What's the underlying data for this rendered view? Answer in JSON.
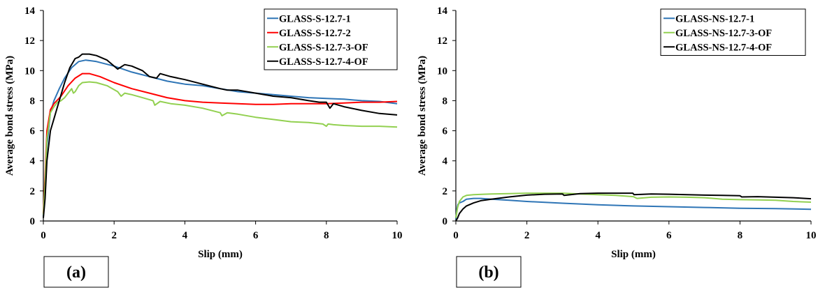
{
  "chart_data": [
    {
      "type": "line",
      "panel_label": "(a)",
      "xlabel": "Slip (mm)",
      "ylabel": "Average bond stress (MPa)",
      "xlim": [
        0,
        10
      ],
      "ylim": [
        0,
        14
      ],
      "xticks": [
        "0",
        "2",
        "4",
        "6",
        "8",
        "10"
      ],
      "yticks": [
        "0",
        "2",
        "4",
        "6",
        "8",
        "10",
        "12",
        "14"
      ],
      "grid": false,
      "legend_position": "top-right",
      "series": [
        {
          "name": "GLASS-S-12.7-1",
          "color": "#2e75b6",
          "x": [
            0,
            0.05,
            0.1,
            0.2,
            0.3,
            0.45,
            0.6,
            0.8,
            1.0,
            1.2,
            1.5,
            2.0,
            2.5,
            3.0,
            3.5,
            4.0,
            4.5,
            5.0,
            5.5,
            6.0,
            6.5,
            7.0,
            7.5,
            8.0,
            8.5,
            9.0,
            9.5,
            10.0
          ],
          "y": [
            0.3,
            2.5,
            5.0,
            7.2,
            8.0,
            8.8,
            9.5,
            10.2,
            10.6,
            10.7,
            10.6,
            10.3,
            9.9,
            9.6,
            9.3,
            9.1,
            9.0,
            8.8,
            8.6,
            8.5,
            8.4,
            8.3,
            8.2,
            8.15,
            8.1,
            8.0,
            7.95,
            7.8
          ]
        },
        {
          "name": "GLASS-S-12.7-2",
          "color": "#ff0000",
          "x": [
            0,
            0.05,
            0.1,
            0.2,
            0.3,
            0.5,
            0.7,
            0.9,
            1.1,
            1.3,
            1.6,
            2.0,
            2.5,
            3.0,
            3.5,
            4.0,
            4.5,
            5.0,
            5.5,
            6.0,
            6.5,
            7.0,
            7.5,
            8.0,
            8.5,
            9.0,
            9.5,
            10.0
          ],
          "y": [
            0.5,
            3.0,
            6.0,
            7.4,
            7.8,
            8.3,
            9.0,
            9.5,
            9.8,
            9.8,
            9.6,
            9.2,
            8.8,
            8.5,
            8.2,
            8.0,
            7.9,
            7.85,
            7.8,
            7.75,
            7.75,
            7.8,
            7.8,
            7.8,
            7.85,
            7.9,
            7.9,
            7.95
          ]
        },
        {
          "name": "GLASS-S-12.7-3-OF",
          "color": "#92d050",
          "x": [
            0,
            0.05,
            0.1,
            0.2,
            0.3,
            0.4,
            0.5,
            0.6,
            0.7,
            0.8,
            0.85,
            0.9,
            1.0,
            1.1,
            1.3,
            1.5,
            1.8,
            2.1,
            2.2,
            2.3,
            2.5,
            2.8,
            3.1,
            3.15,
            3.3,
            3.6,
            4.0,
            4.5,
            5.0,
            5.05,
            5.2,
            5.5,
            6.0,
            6.5,
            7.0,
            7.5,
            7.9,
            8.0,
            8.05,
            8.2,
            8.5,
            9.0,
            9.5,
            10.0
          ],
          "y": [
            0.4,
            2.5,
            5.5,
            7.2,
            7.6,
            7.9,
            8.0,
            8.2,
            8.5,
            8.8,
            8.5,
            8.6,
            9.0,
            9.2,
            9.25,
            9.2,
            9.0,
            8.6,
            8.3,
            8.5,
            8.4,
            8.2,
            8.0,
            7.7,
            7.95,
            7.8,
            7.7,
            7.5,
            7.2,
            7.0,
            7.2,
            7.1,
            6.9,
            6.75,
            6.6,
            6.55,
            6.45,
            6.3,
            6.45,
            6.4,
            6.35,
            6.3,
            6.3,
            6.25
          ]
        },
        {
          "name": "GLASS-S-12.7-4-OF",
          "color": "#000000",
          "x": [
            0,
            0.05,
            0.1,
            0.2,
            0.3,
            0.45,
            0.6,
            0.75,
            0.9,
            1.0,
            1.1,
            1.3,
            1.5,
            1.8,
            2.1,
            2.3,
            2.5,
            2.8,
            3.0,
            3.2,
            3.3,
            3.6,
            4.0,
            4.5,
            5.0,
            5.2,
            5.5,
            6.0,
            6.5,
            7.0,
            7.5,
            7.8,
            8.0,
            8.1,
            8.2,
            8.5,
            9.0,
            9.5,
            10.0
          ],
          "y": [
            0.2,
            1.5,
            4.0,
            6.0,
            6.8,
            8.0,
            9.2,
            10.2,
            10.8,
            10.9,
            11.1,
            11.1,
            11.0,
            10.7,
            10.1,
            10.4,
            10.3,
            10.0,
            9.6,
            9.5,
            9.8,
            9.6,
            9.4,
            9.1,
            8.8,
            8.7,
            8.7,
            8.5,
            8.3,
            8.2,
            8.0,
            7.9,
            7.9,
            7.5,
            7.8,
            7.6,
            7.35,
            7.15,
            7.05
          ]
        }
      ]
    },
    {
      "type": "line",
      "panel_label": "(b)",
      "xlabel": "Slip (mm)",
      "ylabel": "Average bond stress (MPa)",
      "xlim": [
        0,
        10
      ],
      "ylim": [
        0,
        14
      ],
      "xticks": [
        "0",
        "2",
        "4",
        "6",
        "8",
        "10"
      ],
      "yticks": [
        "0",
        "2",
        "4",
        "6",
        "8",
        "10",
        "12",
        "14"
      ],
      "grid": false,
      "legend_position": "top-right",
      "series": [
        {
          "name": "GLASS-NS-12.7-1",
          "color": "#2e75b6",
          "x": [
            0,
            0.03,
            0.06,
            0.1,
            0.2,
            0.3,
            0.5,
            0.7,
            1.0,
            1.5,
            2.0,
            3.0,
            4.0,
            5.0,
            6.0,
            7.0,
            8.0,
            9.0,
            10.0
          ],
          "y": [
            0.1,
            0.8,
            1.1,
            1.2,
            1.3,
            1.45,
            1.5,
            1.5,
            1.45,
            1.38,
            1.3,
            1.18,
            1.08,
            1.0,
            0.95,
            0.9,
            0.85,
            0.82,
            0.78
          ]
        },
        {
          "name": "GLASS-NS-12.7-3-OF",
          "color": "#92d050",
          "x": [
            0,
            0.05,
            0.1,
            0.2,
            0.3,
            0.5,
            0.8,
            1.0,
            1.5,
            2.0,
            2.5,
            3.0,
            3.5,
            4.0,
            4.5,
            5.0,
            5.1,
            5.5,
            6.0,
            6.5,
            7.0,
            7.5,
            8.0,
            8.5,
            9.0,
            9.5,
            10.0
          ],
          "y": [
            0.2,
            0.9,
            1.3,
            1.6,
            1.7,
            1.75,
            1.78,
            1.8,
            1.82,
            1.85,
            1.85,
            1.85,
            1.8,
            1.75,
            1.7,
            1.62,
            1.5,
            1.58,
            1.6,
            1.58,
            1.55,
            1.45,
            1.42,
            1.4,
            1.38,
            1.3,
            1.25
          ]
        },
        {
          "name": "GLASS-NS-12.7-4-OF",
          "color": "#000000",
          "x": [
            0,
            0.05,
            0.1,
            0.2,
            0.3,
            0.5,
            0.7,
            1.0,
            1.5,
            2.0,
            2.5,
            3.0,
            3.05,
            3.5,
            4.0,
            4.5,
            4.98,
            5.02,
            5.5,
            6.0,
            6.5,
            7.0,
            7.5,
            8.0,
            8.05,
            8.5,
            9.0,
            9.5,
            10.0
          ],
          "y": [
            0.0,
            0.2,
            0.5,
            0.8,
            1.0,
            1.2,
            1.35,
            1.45,
            1.6,
            1.72,
            1.78,
            1.8,
            1.7,
            1.82,
            1.85,
            1.85,
            1.85,
            1.75,
            1.8,
            1.78,
            1.75,
            1.72,
            1.7,
            1.68,
            1.6,
            1.62,
            1.58,
            1.55,
            1.48
          ]
        }
      ]
    }
  ]
}
